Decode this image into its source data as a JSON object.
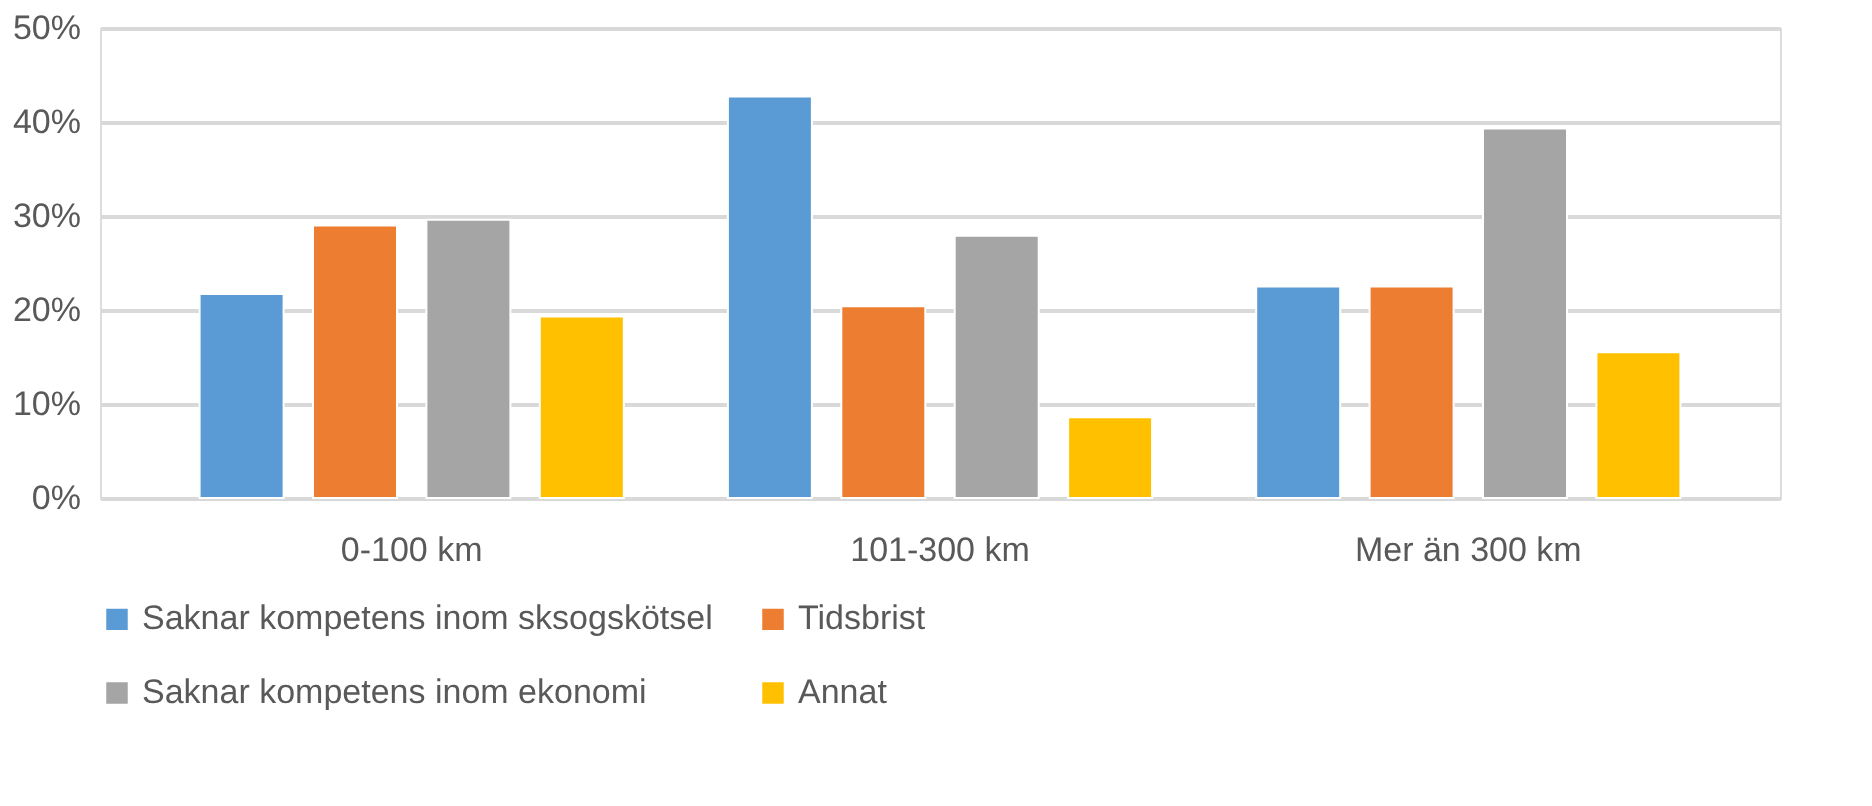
{
  "chart_data": {
    "type": "bar",
    "categories": [
      "0-100 km",
      "101-300 km",
      "Mer än 300 km"
    ],
    "series": [
      {
        "name": "Saknar kompetens inom sksogskötsel",
        "color": "#5b9bd5",
        "values": [
          21.7,
          42.7,
          22.5
        ]
      },
      {
        "name": "Tidsbrist",
        "color": "#ed7d31",
        "values": [
          29.0,
          20.4,
          22.5
        ]
      },
      {
        "name": "Saknar kompetens inom ekonomi",
        "color": "#a5a5a5",
        "values": [
          29.6,
          27.9,
          39.3
        ]
      },
      {
        "name": "Annat",
        "color": "#ffc000",
        "values": [
          19.3,
          8.6,
          15.5
        ]
      }
    ],
    "ylim": [
      0,
      50
    ],
    "yticks": [
      {
        "value": 0,
        "label": "0%"
      },
      {
        "value": 10,
        "label": "10%"
      },
      {
        "value": 20,
        "label": "20%"
      },
      {
        "value": 30,
        "label": "30%"
      },
      {
        "value": 40,
        "label": "40%"
      },
      {
        "value": 50,
        "label": "50%"
      }
    ],
    "grid": "y",
    "legend": "bottom"
  }
}
